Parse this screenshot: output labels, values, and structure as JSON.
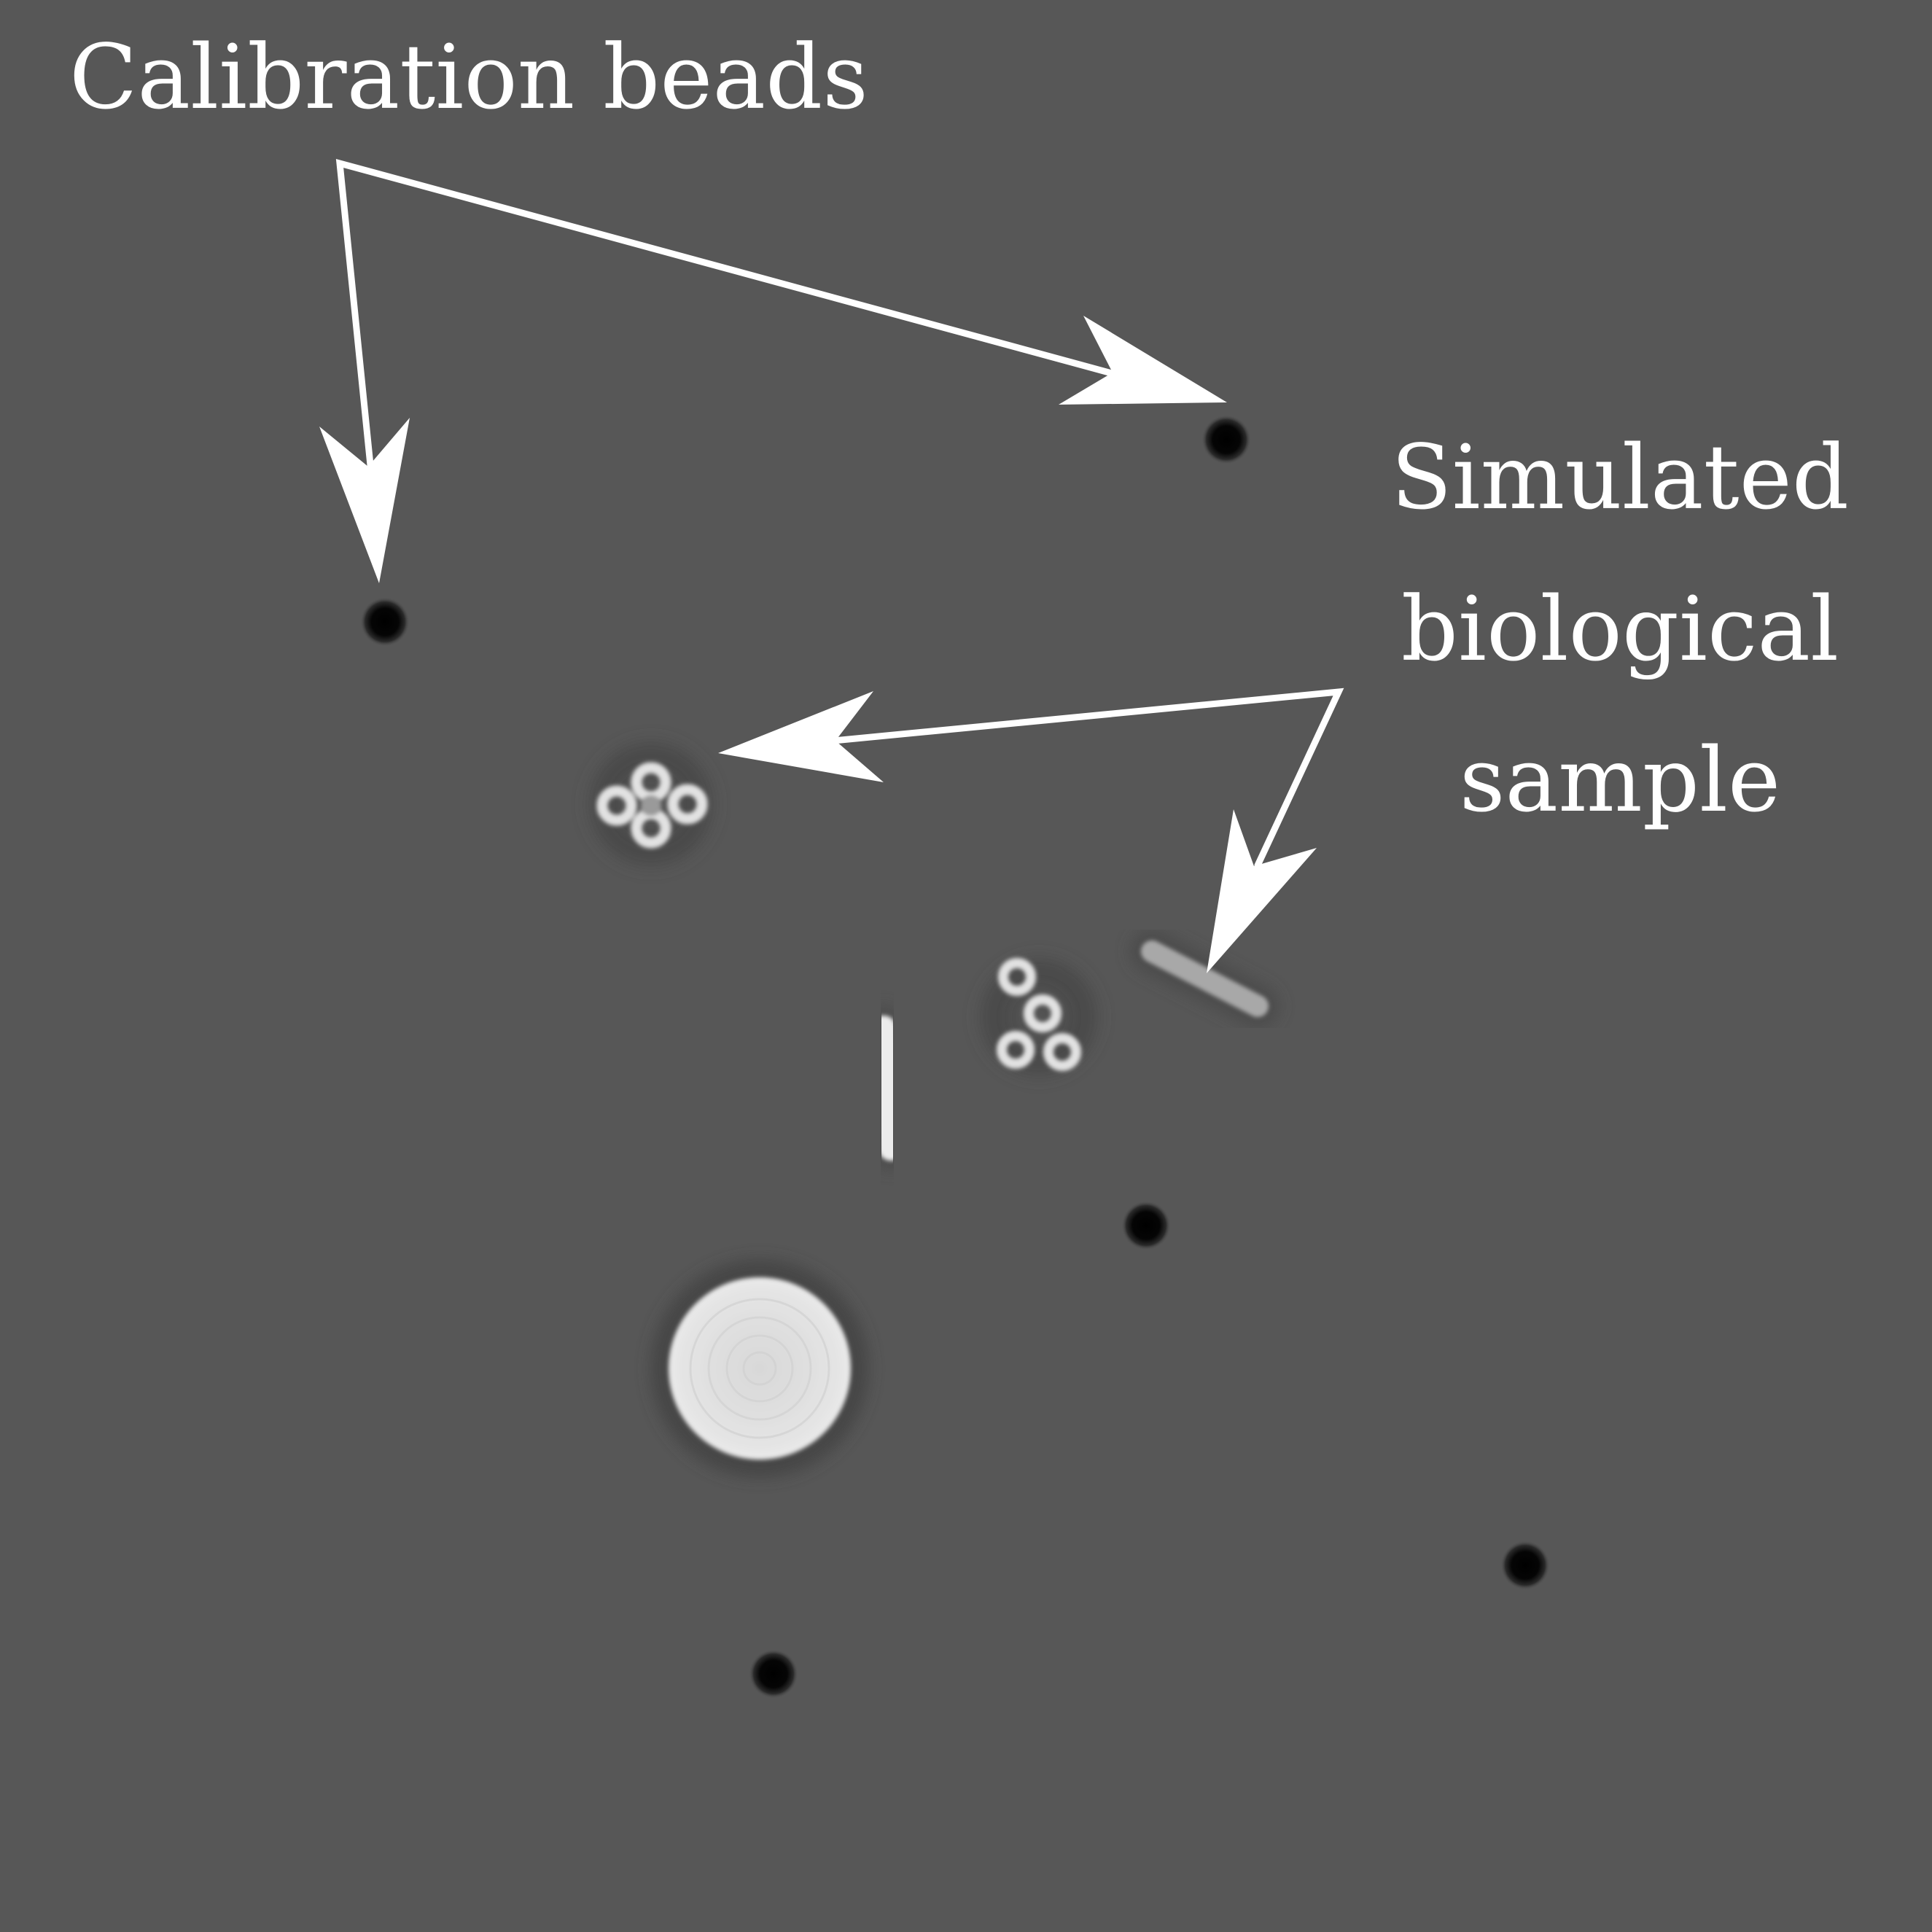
{
  "labels": {
    "beads": "Calibration beads",
    "sample_line1": "Simulated",
    "sample_line2": "biological",
    "sample_line3": "sample"
  },
  "colors": {
    "background": "#575757",
    "annotation": "#ffffff",
    "bead": "#000000",
    "sample": "#e6e6e6"
  }
}
